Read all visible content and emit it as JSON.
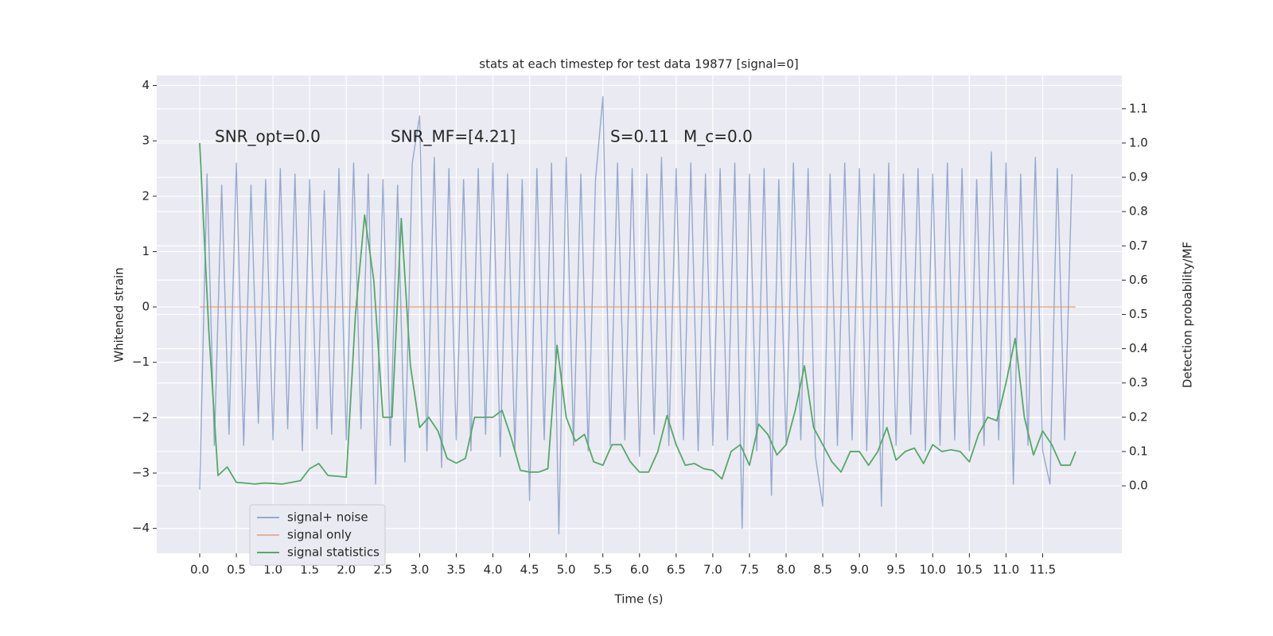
{
  "chart_data": {
    "type": "line",
    "title": "stats at each timestep for test data 19877 [signal=0]",
    "xlabel": "Time (s)",
    "ylabel": "Whitened strain",
    "y2label": "Detection probability/MF",
    "annotations": [
      "SNR_opt=0.0",
      "SNR_MF=[4.21]",
      "S=0.11",
      "M_c=0.0"
    ],
    "xlim": [
      -0.586,
      12.58
    ],
    "ylim": [
      -4.45,
      4.18
    ],
    "y2lim": [
      -0.197,
      1.197
    ],
    "xticks": [
      {
        "value": 0,
        "label": "0.0"
      },
      0.5,
      {
        "value": 1,
        "label": "1.0"
      },
      1.5,
      {
        "value": 2,
        "label": "2.0"
      },
      2.5,
      {
        "value": 3,
        "label": "3.0"
      },
      3.5,
      {
        "value": 4,
        "label": "4.0"
      },
      4.5,
      {
        "value": 5,
        "label": "5.0"
      },
      5.5,
      {
        "value": 6,
        "label": "6.0"
      },
      6.5,
      {
        "value": 7,
        "label": "7.0"
      },
      7.5,
      {
        "value": 8,
        "label": "8.0"
      },
      8.5,
      {
        "value": 9,
        "label": "9.0"
      },
      9.5,
      {
        "value": 10,
        "label": "10.0"
      },
      10.5,
      {
        "value": 11,
        "label": "11.0"
      },
      11.5
    ],
    "yticks": [
      {
        "value": -4,
        "label": "−4"
      },
      {
        "value": -3,
        "label": "−3"
      },
      {
        "value": -2,
        "label": "−2"
      },
      {
        "value": -1,
        "label": "−1"
      },
      0,
      1,
      2,
      3,
      4
    ],
    "y2ticks": [
      {
        "value": 0,
        "label": "0.0"
      },
      0.1,
      0.2,
      0.3,
      0.4,
      0.5,
      0.6,
      0.7,
      0.8,
      0.9,
      {
        "value": 1,
        "label": "1.0"
      },
      1.1
    ],
    "grid": true,
    "legend": "lower left",
    "series": [
      {
        "name": "signal+ noise",
        "color": "#4c72b0",
        "x": [
          0,
          0.1,
          0.2,
          0.3,
          0.4,
          0.5,
          0.6,
          0.7,
          0.8,
          0.9,
          1,
          1.1,
          1.2,
          1.3,
          1.4,
          1.5,
          1.6,
          1.7,
          1.8,
          1.9,
          2,
          2.1,
          2.2,
          2.3,
          2.4,
          2.5,
          2.6,
          2.7,
          2.8,
          2.9,
          3,
          3.1,
          3.2,
          3.3,
          3.4,
          3.5,
          3.6,
          3.7,
          3.8,
          3.9,
          4,
          4.1,
          4.2,
          4.3,
          4.4,
          4.5,
          4.6,
          4.7,
          4.8,
          4.9,
          5,
          5.1,
          5.2,
          5.3,
          5.4,
          5.5,
          5.6,
          5.7,
          5.8,
          5.9,
          6,
          6.1,
          6.2,
          6.3,
          6.4,
          6.5,
          6.6,
          6.7,
          6.8,
          6.9,
          7,
          7.1,
          7.2,
          7.3,
          7.4,
          7.5,
          7.6,
          7.7,
          7.8,
          7.9,
          8,
          8.1,
          8.2,
          8.3,
          8.4,
          8.5,
          8.6,
          8.7,
          8.8,
          8.9,
          9,
          9.1,
          9.2,
          9.3,
          9.4,
          9.5,
          9.6,
          9.7,
          9.8,
          9.9,
          10,
          10.1,
          10.2,
          10.3,
          10.4,
          10.5,
          10.6,
          10.7,
          10.8,
          10.9,
          11,
          11.1,
          11.2,
          11.3,
          11.4,
          11.5,
          11.6,
          11.7,
          11.8,
          11.9
        ],
        "values": [
          -3.3,
          2.4,
          -2.5,
          2.2,
          -2.3,
          2.6,
          -2.5,
          2.2,
          -2.1,
          2.3,
          -2.4,
          2.5,
          -2.2,
          2.4,
          -2.6,
          2.3,
          -2.2,
          2.1,
          -2.3,
          2.5,
          -2.4,
          2.6,
          -2.2,
          2.4,
          -3.2,
          2.3,
          -2.5,
          2.2,
          -2.8,
          2.6,
          3.45,
          -2.6,
          2.7,
          -2.9,
          2.5,
          -2.4,
          2.3,
          -2.6,
          2.5,
          -2.3,
          2.6,
          -2.7,
          2.4,
          -2.6,
          2.3,
          -3.5,
          2.5,
          -2.4,
          2.6,
          -4.1,
          2.7,
          -2.5,
          2.4,
          -2.6,
          2.3,
          3.8,
          -2.5,
          2.6,
          -2.4,
          2.5,
          -2.7,
          2.4,
          -2.3,
          2.7,
          -2.5,
          2.5,
          -2.4,
          2.6,
          -2.6,
          2.4,
          -2.5,
          2.5,
          -2.4,
          2.6,
          -4.0,
          2.4,
          -2.6,
          2.5,
          -3.4,
          2.3,
          -2.5,
          2.6,
          -2.4,
          2.5,
          -2.7,
          -3.6,
          2.4,
          -2.5,
          2.6,
          -2.4,
          2.5,
          -2.6,
          2.4,
          -3.6,
          2.6,
          -2.5,
          2.4,
          -2.3,
          2.5,
          -2.6,
          2.4,
          -2.5,
          2.6,
          -2.4,
          2.5,
          -2.6,
          2.3,
          -2.5,
          2.8,
          -2.4,
          2.6,
          -3.2,
          2.4,
          -2.5,
          2.7,
          -2.6,
          -3.2,
          2.5,
          -2.4,
          2.4
        ]
      },
      {
        "name": "signal only",
        "color": "#dd8452",
        "x": [
          0,
          11.95
        ],
        "values": [
          0,
          0
        ]
      },
      {
        "name": "signal statistics",
        "color": "#55a868",
        "axis": "y2",
        "x": [
          0,
          0.125,
          0.25,
          0.375,
          0.5,
          0.625,
          0.75,
          0.875,
          1,
          1.125,
          1.25,
          1.375,
          1.5,
          1.625,
          1.75,
          1.875,
          2,
          2.125,
          2.25,
          2.375,
          2.5,
          2.625,
          2.75,
          2.875,
          3,
          3.125,
          3.25,
          3.375,
          3.5,
          3.625,
          3.75,
          3.875,
          4,
          4.125,
          4.25,
          4.375,
          4.5,
          4.625,
          4.75,
          4.875,
          5,
          5.125,
          5.25,
          5.375,
          5.5,
          5.625,
          5.75,
          5.875,
          6,
          6.125,
          6.25,
          6.375,
          6.5,
          6.625,
          6.75,
          6.875,
          7,
          7.125,
          7.25,
          7.375,
          7.5,
          7.625,
          7.75,
          7.875,
          8,
          8.125,
          8.25,
          8.375,
          8.5,
          8.625,
          8.75,
          8.875,
          9,
          9.125,
          9.25,
          9.375,
          9.5,
          9.625,
          9.75,
          9.875,
          10,
          10.125,
          10.25,
          10.375,
          10.5,
          10.625,
          10.75,
          10.875,
          11,
          11.125,
          11.25,
          11.375,
          11.5,
          11.625,
          11.75,
          11.875,
          11.95
        ],
        "values": [
          1.0,
          0.45,
          0.03,
          0.055,
          0.01,
          0.008,
          0.005,
          0.008,
          0.007,
          0.005,
          0.01,
          0.015,
          0.05,
          0.065,
          0.03,
          0.028,
          0.025,
          0.5,
          0.79,
          0.6,
          0.2,
          0.2,
          0.78,
          0.35,
          0.17,
          0.2,
          0.16,
          0.08,
          0.066,
          0.08,
          0.2,
          0.2,
          0.2,
          0.22,
          0.14,
          0.045,
          0.04,
          0.04,
          0.05,
          0.41,
          0.2,
          0.13,
          0.15,
          0.07,
          0.06,
          0.12,
          0.12,
          0.07,
          0.04,
          0.04,
          0.1,
          0.205,
          0.12,
          0.06,
          0.065,
          0.05,
          0.045,
          0.02,
          0.1,
          0.12,
          0.06,
          0.18,
          0.15,
          0.09,
          0.12,
          0.22,
          0.35,
          0.17,
          0.12,
          0.07,
          0.04,
          0.1,
          0.1,
          0.06,
          0.1,
          0.17,
          0.075,
          0.1,
          0.11,
          0.065,
          0.12,
          0.1,
          0.105,
          0.1,
          0.07,
          0.15,
          0.2,
          0.19,
          0.3,
          0.43,
          0.2,
          0.09,
          0.16,
          0.12,
          0.06,
          0.06,
          0.1
        ]
      }
    ]
  }
}
